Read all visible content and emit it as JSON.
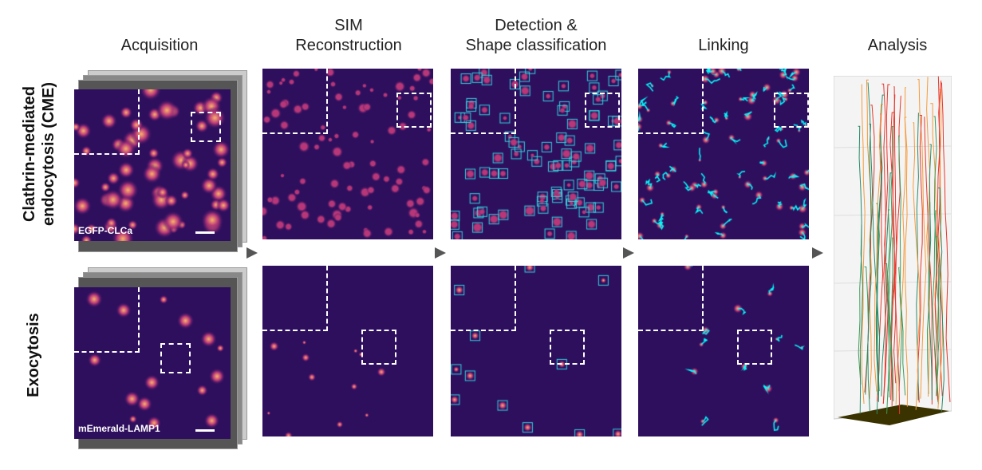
{
  "columns": [
    {
      "label": "Acquisition"
    },
    {
      "label": "SIM\nReconstruction"
    },
    {
      "label": "Detection &\nShape classification"
    },
    {
      "label": "Linking"
    },
    {
      "label": "Analysis"
    }
  ],
  "rows": [
    {
      "label": "Clathrin-mediated\nendocytosis (CME)",
      "marker": "EGFP-CLCa"
    },
    {
      "label": "Exocytosis",
      "marker": "mEmerald-LAMP1"
    }
  ],
  "colors": {
    "background": "#2e0f5e",
    "detection_box": "#33d6e0",
    "track": "#00ffff",
    "arrow": "#555555"
  }
}
